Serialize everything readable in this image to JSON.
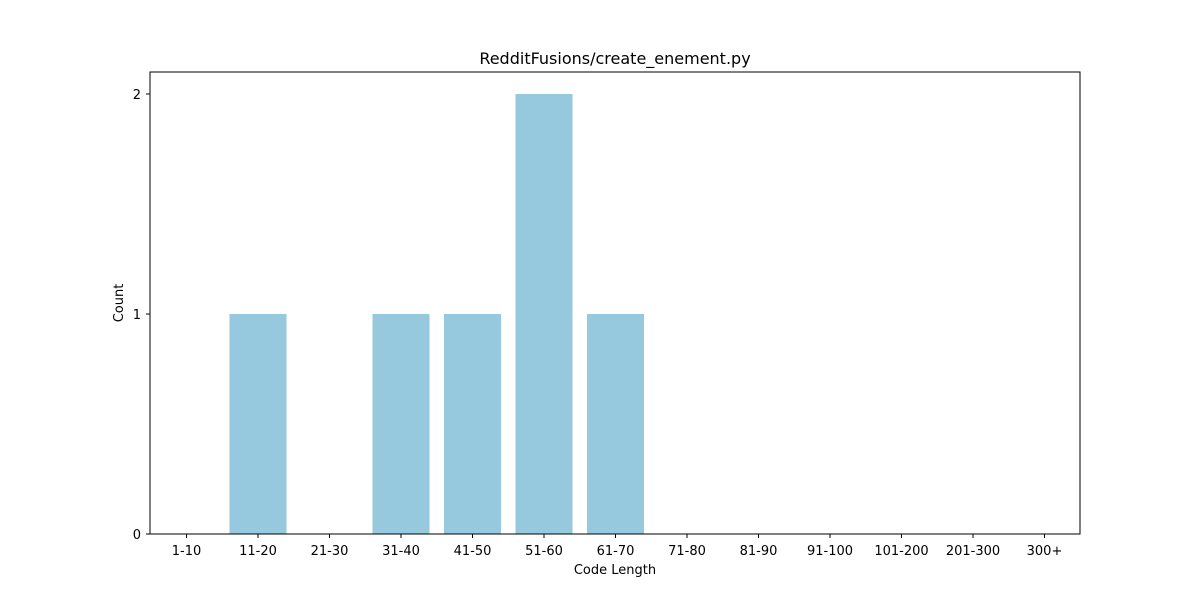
{
  "chart_data": {
    "type": "bar",
    "title": "RedditFusions/create_enement.py",
    "xlabel": "Code Length",
    "ylabel": "Count",
    "categories": [
      "1-10",
      "11-20",
      "21-30",
      "31-40",
      "41-50",
      "51-60",
      "61-70",
      "71-80",
      "81-90",
      "91-100",
      "101-200",
      "201-300",
      "300+"
    ],
    "values": [
      0,
      1,
      0,
      1,
      1,
      2,
      1,
      0,
      0,
      0,
      0,
      0,
      0
    ],
    "ylim": [
      0,
      2.1
    ],
    "yticks": [
      "0",
      "1",
      "2"
    ],
    "grid": false,
    "bar_color": "#96c9dd"
  }
}
